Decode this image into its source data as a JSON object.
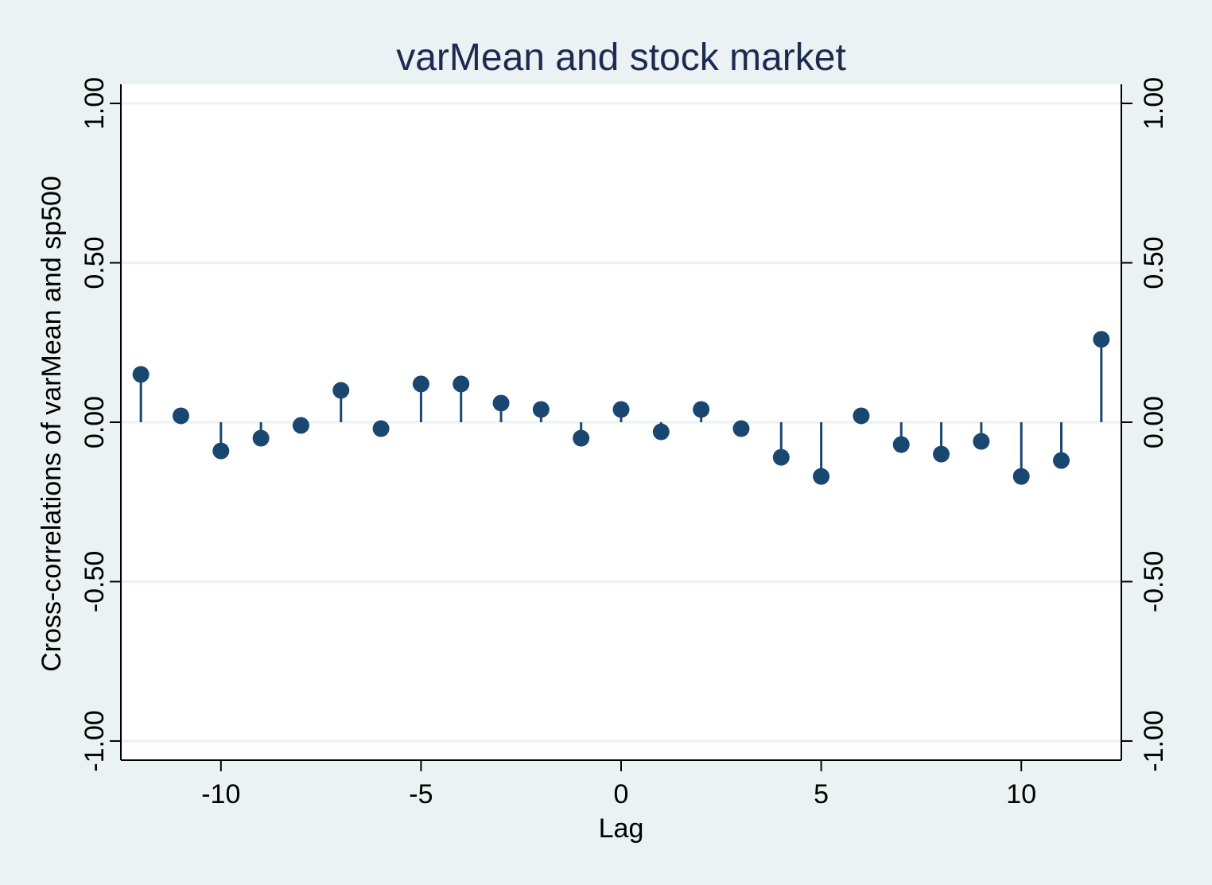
{
  "chart_data": {
    "type": "scatter",
    "style": "spike",
    "title": "varMean and stock market",
    "xlabel": "Lag",
    "ylabel": "Cross-correlations of varMean and sp500",
    "xlim": [
      -12.5,
      12.5
    ],
    "ylim": [
      -1.06,
      1.06
    ],
    "x_ticks": [
      -10,
      -5,
      0,
      5,
      10
    ],
    "x_tick_labels": [
      "-10",
      "-5",
      "0",
      "5",
      "10"
    ],
    "y_ticks": [
      -1,
      -0.5,
      0,
      0.5,
      1
    ],
    "y_tick_labels": [
      "-1.00",
      "-0.50",
      "0.00",
      "0.50",
      "1.00"
    ],
    "right_axis_mirror": true,
    "grid": "horizontal",
    "colors": {
      "background": "#eaf2f3",
      "plot_area": "#ffffff",
      "marker": "#1a476f",
      "gridline": "#eaf2f3",
      "text": "#000000",
      "title": "#1e2a4f"
    },
    "series": [
      {
        "x": [
          -12,
          -11,
          -10,
          -9,
          -8,
          -7,
          -6,
          -5,
          -4,
          -3,
          -2,
          -1,
          0,
          1,
          2,
          3,
          4,
          5,
          6,
          7,
          8,
          9,
          10,
          11,
          12
        ],
        "y": [
          0.15,
          0.02,
          -0.09,
          -0.05,
          -0.01,
          0.1,
          -0.02,
          0.12,
          0.12,
          0.06,
          0.04,
          -0.05,
          0.04,
          -0.03,
          0.04,
          -0.02,
          -0.11,
          -0.17,
          0.02,
          -0.07,
          -0.1,
          -0.06,
          -0.17,
          -0.12,
          0.26
        ]
      }
    ]
  }
}
